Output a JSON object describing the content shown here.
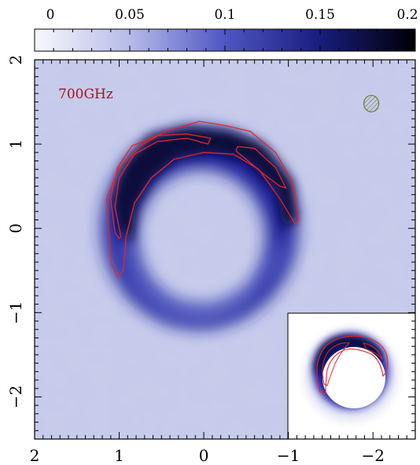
{
  "chart_data": {
    "type": "heatmap",
    "title": "",
    "xlabel": "",
    "ylabel": "",
    "xlim": [
      2,
      -2.5
    ],
    "ylim": [
      -2.5,
      2
    ],
    "x_ticks": [
      "2",
      "1",
      "0",
      "−1",
      "−2"
    ],
    "y_ticks": [
      "2",
      "1",
      "0",
      "−1",
      "−2"
    ],
    "annotation": "700GHz",
    "colorbar": {
      "range": [
        0,
        0.2
      ],
      "ticks": [
        "0",
        "0.05",
        "0.1",
        "0.15",
        "0.2"
      ],
      "colors": [
        "#f4f5fc",
        "#aeb3e6",
        "#5159c5",
        "#1c218c",
        "#000008"
      ]
    },
    "ring": {
      "center": [
        0.05,
        0.0
      ],
      "outer_radius_x": 1.15,
      "outer_radius_y": 1.18,
      "inner_radius_x": 0.78,
      "inner_radius_y": 0.84,
      "peak_value": 0.2
    },
    "contour_color": "#e8242c",
    "contour_levels": [
      "outer",
      "inner"
    ],
    "beam": {
      "center": [
        -1.98,
        1.48
      ],
      "color": "#6b7a2e"
    },
    "inset": {
      "description_color_inner": "#ffffff",
      "ring_color": "#1a1fa6"
    }
  }
}
